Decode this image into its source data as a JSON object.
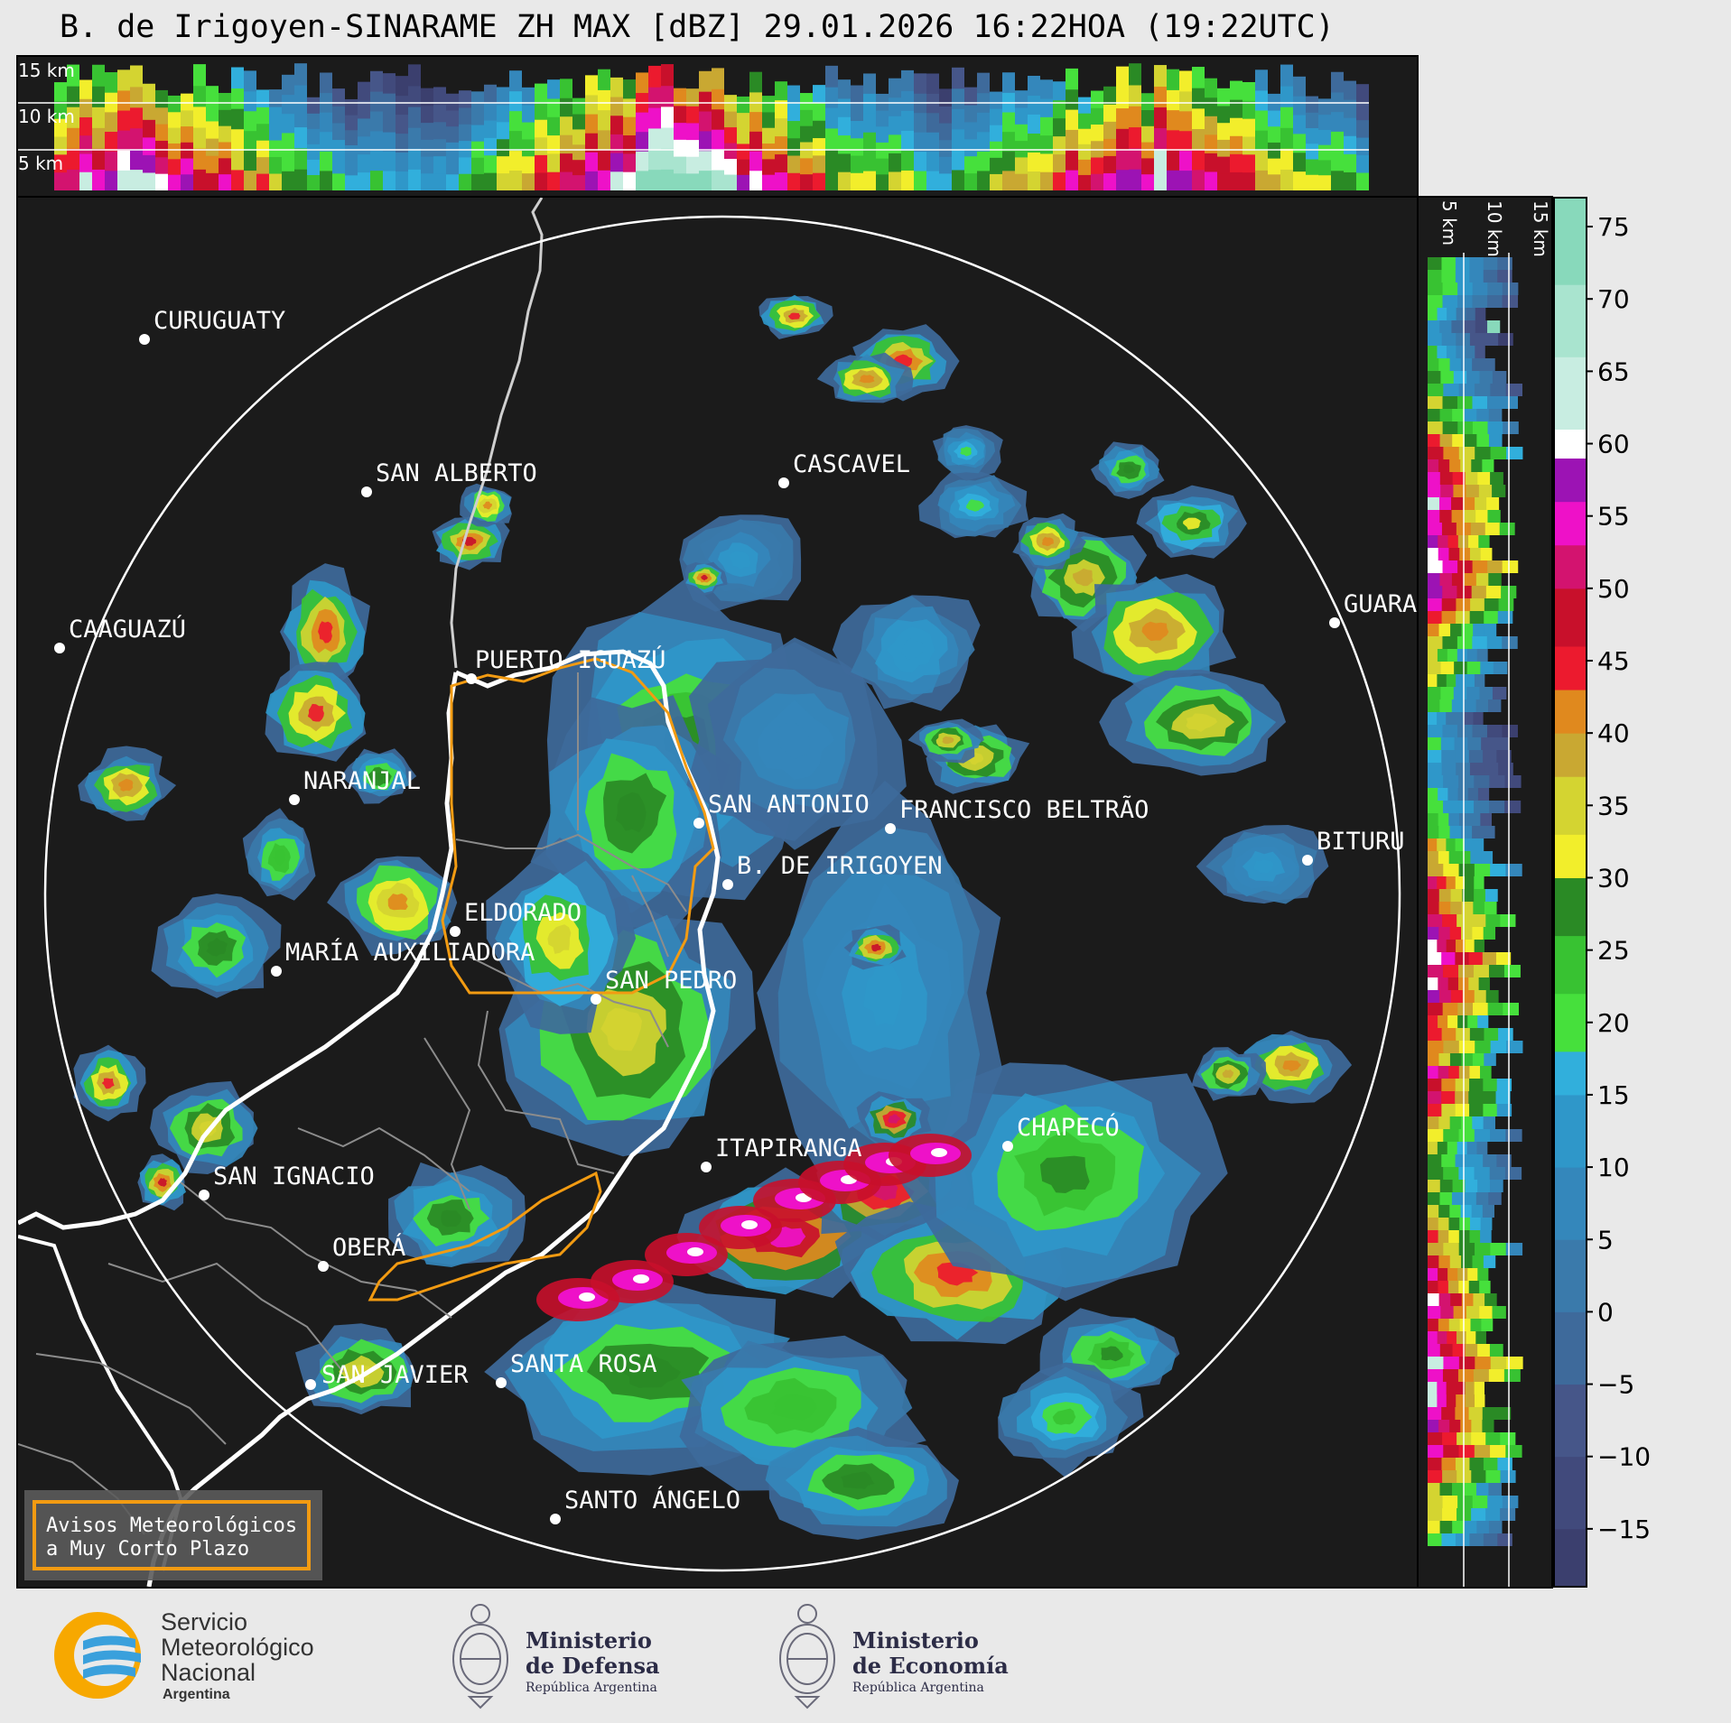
{
  "title": "B. de Irigoyen-SINARAME ZH MAX [dBZ] 29.01.2026 16:22HOA (19:22UTC)",
  "top_profile": {
    "height_labels": [
      "15 km",
      "10 km",
      "5 km"
    ]
  },
  "side_profile": {
    "height_labels": [
      "5 km",
      "10 km",
      "15 km"
    ]
  },
  "colorbar": {
    "unit": "dBZ",
    "min": -19,
    "max": 77,
    "ticks": [
      "75",
      "70",
      "65",
      "60",
      "55",
      "50",
      "45",
      "40",
      "35",
      "30",
      "25",
      "20",
      "15",
      "10",
      "5",
      "0",
      "−5",
      "−10",
      "−15"
    ],
    "tick_values": [
      75,
      70,
      65,
      60,
      55,
      50,
      45,
      40,
      35,
      30,
      25,
      20,
      15,
      10,
      5,
      0,
      -5,
      -10,
      -15
    ],
    "colors": [
      {
        "from": -19,
        "to": -15,
        "color": "#3b3f6e"
      },
      {
        "from": -15,
        "to": -10,
        "color": "#414a7c"
      },
      {
        "from": -10,
        "to": -5,
        "color": "#465689"
      },
      {
        "from": -5,
        "to": 0,
        "color": "#3e6a9b"
      },
      {
        "from": 0,
        "to": 5,
        "color": "#3a7aab"
      },
      {
        "from": 5,
        "to": 10,
        "color": "#3487bb"
      },
      {
        "from": 10,
        "to": 15,
        "color": "#2f97c9"
      },
      {
        "from": 15,
        "to": 18,
        "color": "#31afdc"
      },
      {
        "from": 18,
        "to": 22,
        "color": "#46e03c"
      },
      {
        "from": 22,
        "to": 26,
        "color": "#38c232"
      },
      {
        "from": 26,
        "to": 30,
        "color": "#2a8a25"
      },
      {
        "from": 30,
        "to": 33,
        "color": "#f2ee2b"
      },
      {
        "from": 33,
        "to": 37,
        "color": "#d4d431"
      },
      {
        "from": 37,
        "to": 40,
        "color": "#c9a832"
      },
      {
        "from": 40,
        "to": 43,
        "color": "#e0891e"
      },
      {
        "from": 43,
        "to": 46,
        "color": "#ec1a2e"
      },
      {
        "from": 46,
        "to": 50,
        "color": "#c8102b"
      },
      {
        "from": 50,
        "to": 53,
        "color": "#d3136f"
      },
      {
        "from": 53,
        "to": 56,
        "color": "#ee11c8"
      },
      {
        "from": 56,
        "to": 59,
        "color": "#9c13b4"
      },
      {
        "from": 59,
        "to": 61,
        "color": "#ffffff"
      },
      {
        "from": 61,
        "to": 66,
        "color": "#c8ede1"
      },
      {
        "from": 66,
        "to": 71,
        "color": "#a9e4cf"
      },
      {
        "from": 71,
        "to": 77,
        "color": "#88d9bb"
      }
    ]
  },
  "map": {
    "range_ring": "white circle",
    "cities": [
      {
        "name": "CURUGUATY"
      },
      {
        "name": "SAN ALBERTO"
      },
      {
        "name": "CASCAVEL"
      },
      {
        "name": "CAAGUAZÚ"
      },
      {
        "name": "GUARA"
      },
      {
        "name": "PUERTO IGUAZÚ"
      },
      {
        "name": "NARANJAL"
      },
      {
        "name": "SAN ANTONIO"
      },
      {
        "name": "FRANCISCO BELTRÃO"
      },
      {
        "name": "BITURU"
      },
      {
        "name": "B. DE IRIGOYEN"
      },
      {
        "name": "ELDORADO"
      },
      {
        "name": "MARÍA AUXILIADORA"
      },
      {
        "name": "SAN PEDRO"
      },
      {
        "name": "CHAPECÓ"
      },
      {
        "name": "ITAPIRANGA"
      },
      {
        "name": "SAN IGNACIO"
      },
      {
        "name": "OBERÁ"
      },
      {
        "name": "SAN JAVIER"
      },
      {
        "name": "SANTA ROSA"
      },
      {
        "name": "SANTO ÁNGELO"
      }
    ]
  },
  "notice": {
    "line1": "Avisos Meteorológicos",
    "line2": "a Muy Corto Plazo",
    "accent": "#f29b12"
  },
  "footer": {
    "smn": {
      "line1": "Servicio",
      "line2": "Meteorológico",
      "line3": "Nacional",
      "line4": "Argentina"
    },
    "defensa": {
      "line1": "Ministerio",
      "line2": "de Defensa",
      "line3": "República Argentina"
    },
    "economia": {
      "line1": "Ministerio",
      "line2": "de Economía",
      "line3": "República Argentina"
    }
  }
}
